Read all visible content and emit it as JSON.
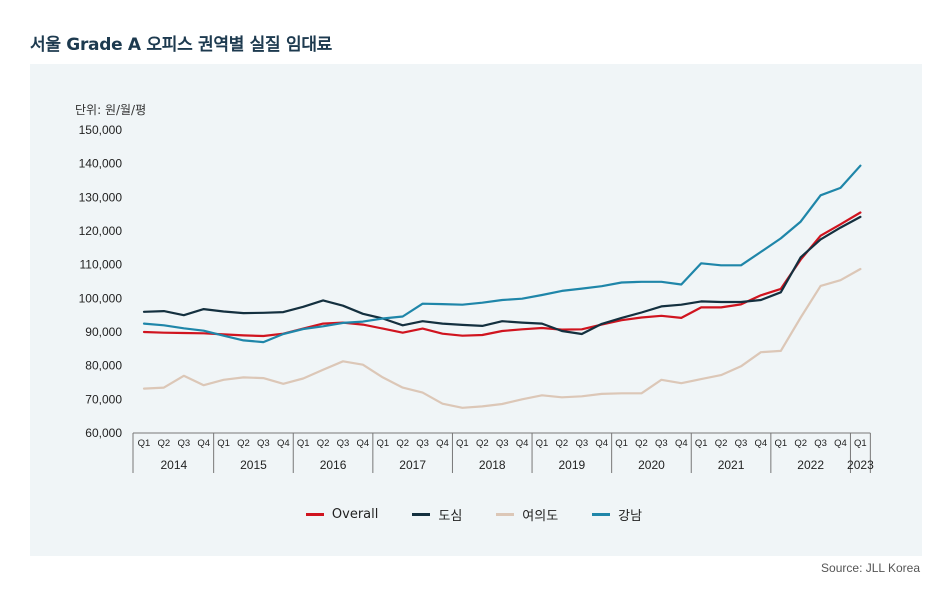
{
  "title": "서울 Grade A 오피스 권역별 실질 임대료",
  "unit_label": "단위: 원/월/평",
  "source": "Source: JLL Korea",
  "chart_data": {
    "type": "line",
    "ylim": [
      60000,
      150000
    ],
    "yticks": [
      "60,000",
      "70,000",
      "80,000",
      "90,000",
      "100,000",
      "110,000",
      "120,000",
      "130,000",
      "140,000",
      "150,000"
    ],
    "ytick_values": [
      60000,
      70000,
      80000,
      90000,
      100000,
      110000,
      120000,
      130000,
      140000,
      150000
    ],
    "quarters": [
      "Q1",
      "Q2",
      "Q3",
      "Q4",
      "Q1",
      "Q2",
      "Q3",
      "Q4",
      "Q1",
      "Q2",
      "Q3",
      "Q4",
      "Q1",
      "Q2",
      "Q3",
      "Q4",
      "Q1",
      "Q2",
      "Q3",
      "Q4",
      "Q1",
      "Q2",
      "Q3",
      "Q4",
      "Q1",
      "Q2",
      "Q3",
      "Q4",
      "Q1",
      "Q2",
      "Q3",
      "Q4",
      "Q1",
      "Q2",
      "Q3",
      "Q4",
      "Q1"
    ],
    "years": [
      "2014",
      "2015",
      "2016",
      "2017",
      "2018",
      "2019",
      "2020",
      "2021",
      "2022",
      "2023"
    ],
    "grid": false,
    "legend_position": "bottom",
    "series": [
      {
        "name": "Overall",
        "color": "#d0141f",
        "values": [
          90000,
          89800,
          89700,
          89600,
          89300,
          89000,
          88800,
          89500,
          91000,
          92500,
          92800,
          92200,
          91000,
          89800,
          91000,
          89500,
          88900,
          89100,
          90300,
          90800,
          91200,
          90700,
          90800,
          92200,
          93500,
          94300,
          94800,
          94200,
          97300,
          97300,
          98200,
          100900,
          102800,
          111500,
          118600,
          122000,
          125500
        ]
      },
      {
        "name": "도심",
        "color": "#14303f",
        "values": [
          96000,
          96200,
          95000,
          96800,
          96100,
          95600,
          95700,
          95900,
          97500,
          99400,
          97800,
          95400,
          94000,
          92000,
          93200,
          92500,
          92100,
          91800,
          93200,
          92800,
          92500,
          90300,
          89400,
          92400,
          94200,
          95800,
          97600,
          98100,
          99100,
          98900,
          98900,
          99500,
          101800,
          112200,
          117500,
          121000,
          124200
        ]
      },
      {
        "name": "여의도",
        "color": "#dcc7b7",
        "values": [
          73200,
          73500,
          77000,
          74200,
          75800,
          76500,
          76300,
          74600,
          76200,
          78800,
          81300,
          80300,
          76500,
          73500,
          72000,
          68700,
          67500,
          67900,
          68600,
          70000,
          71200,
          70600,
          70900,
          71600,
          71800,
          71800,
          75800,
          74800,
          76000,
          77200,
          79800,
          84000,
          84400,
          94300,
          103700,
          105400,
          108700
        ]
      },
      {
        "name": "강남",
        "color": "#1f86a9",
        "values": [
          92500,
          92000,
          91100,
          90400,
          88900,
          87500,
          87000,
          89400,
          90900,
          91700,
          92700,
          93100,
          94000,
          94600,
          98400,
          98300,
          98100,
          98700,
          99500,
          99900,
          101000,
          102200,
          102900,
          103600,
          104700,
          104900,
          104900,
          104100,
          110400,
          109800,
          109800,
          113800,
          117800,
          122800,
          130600,
          132800,
          139400
        ]
      }
    ]
  }
}
